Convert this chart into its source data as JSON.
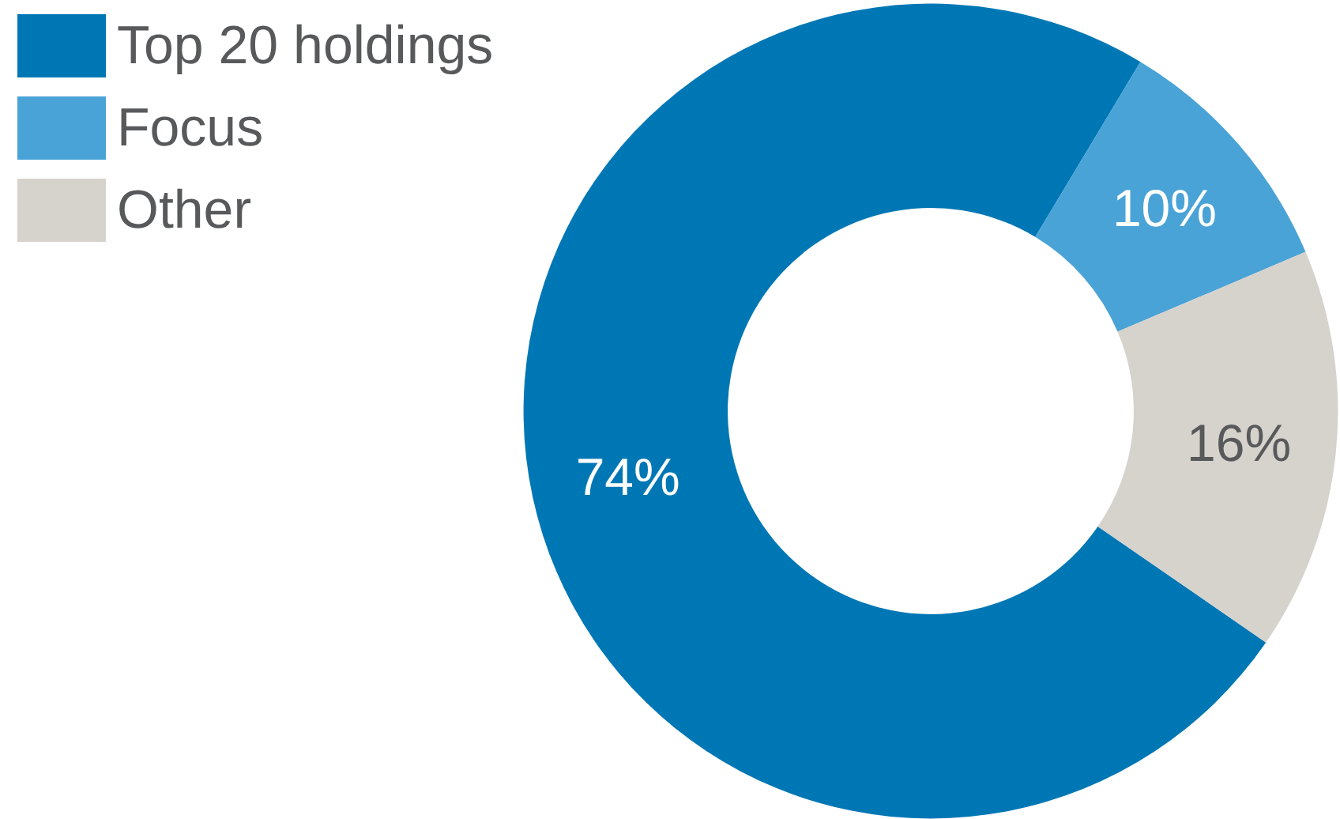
{
  "chart_data": {
    "type": "donut",
    "categories": [
      "Top 20 holdings",
      "Focus",
      "Other"
    ],
    "values": [
      74,
      10,
      16
    ],
    "colors": [
      "#0077b5",
      "#4aa3d6",
      "#d6d2cc"
    ],
    "value_labels": [
      "74%",
      "10%",
      "16%"
    ],
    "legend": "top left"
  }
}
